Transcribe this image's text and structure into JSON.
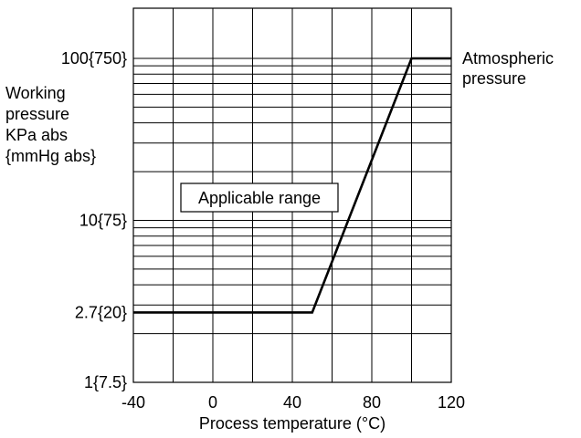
{
  "chart_data": {
    "type": "line",
    "xlabel": "Process temperature (°C)",
    "ylabel_lines": [
      "Working",
      "pressure",
      "KPa abs",
      "{mmHg abs}"
    ],
    "y_scale": "log",
    "xlim": [
      -40,
      120
    ],
    "ylim": [
      1,
      100
    ],
    "x_ticks": [
      {
        "value": -40,
        "label": "-40"
      },
      {
        "value": 0,
        "label": "0"
      },
      {
        "value": 40,
        "label": "40"
      },
      {
        "value": 80,
        "label": "80"
      },
      {
        "value": 120,
        "label": "120"
      }
    ],
    "x_gridlines": [
      -40,
      -20,
      0,
      20,
      40,
      60,
      80,
      100,
      120
    ],
    "y_ticks": [
      {
        "value": 1,
        "label": "1{7.5}"
      },
      {
        "value": 2.7,
        "label": "2.7{20}"
      },
      {
        "value": 10,
        "label": "10{75}"
      },
      {
        "value": 100,
        "label": "100{750}"
      }
    ],
    "y_gridlines": [
      1,
      2,
      3,
      4,
      5,
      6,
      7,
      8,
      9,
      10,
      20,
      30,
      40,
      50,
      60,
      70,
      80,
      90,
      100
    ],
    "grid": true,
    "series": [
      {
        "x": [
          -40,
          50,
          100,
          120
        ],
        "y": [
          2.7,
          2.7,
          100,
          100
        ]
      }
    ],
    "annotations": [
      {
        "text_lines": [
          "Atmospheric",
          "pressure"
        ]
      },
      {
        "text": "Applicable range",
        "boxed": true
      }
    ]
  }
}
